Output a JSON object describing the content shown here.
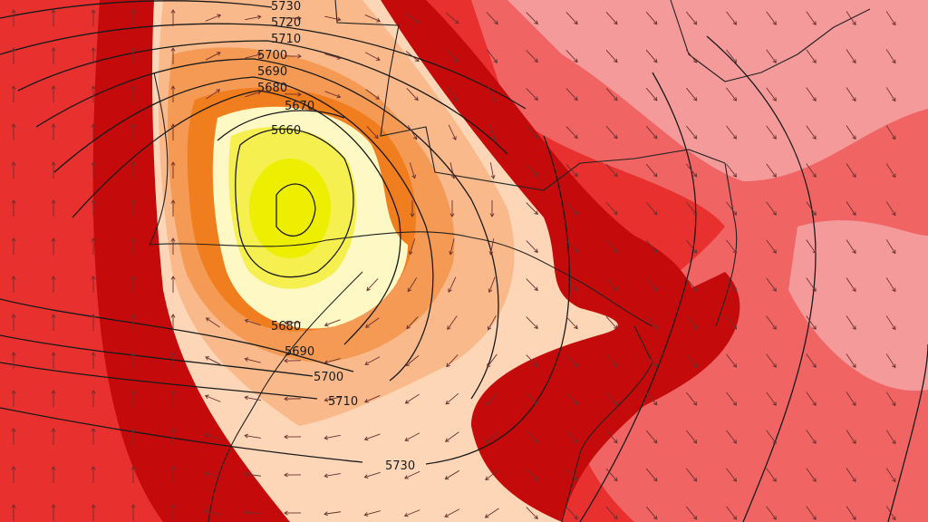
{
  "map": {
    "contour_labels_upper": [
      "5730",
      "5720",
      "5710",
      "5700",
      "5690",
      "5680",
      "5670",
      "5660"
    ],
    "contour_labels_lower": [
      "5680",
      "5690",
      "5700",
      "5710",
      "5730"
    ],
    "colors": {
      "background_red": "#e8302e",
      "dark_red": "#c40a0a",
      "pink": "#f06464",
      "light_pink": "#f59a9a",
      "peach": "#fcd6b6",
      "light_orange": "#f9b98a",
      "orange": "#f59a55",
      "deep_orange": "#f07d1e",
      "pale_yellow": "#fdf8c4",
      "yellow": "#f5f050",
      "bright_yellow": "#eeee00"
    },
    "icons": [
      "wind-arrow-icon"
    ]
  }
}
